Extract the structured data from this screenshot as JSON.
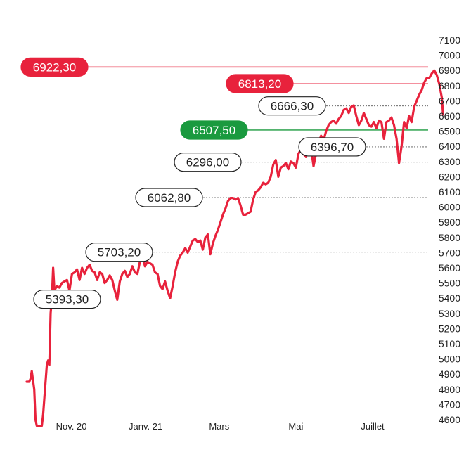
{
  "chart_data": {
    "type": "line",
    "ylim": [
      4550,
      7150
    ],
    "y_ticks": [
      "7100",
      "7000",
      "6900",
      "6800",
      "6700",
      "6600",
      "6500",
      "6400",
      "6300",
      "6200",
      "6100",
      "6000",
      "5900",
      "5800",
      "5700",
      "5600",
      "5500",
      "5400",
      "5300",
      "5200",
      "5100",
      "5000",
      "4900",
      "4800",
      "4700",
      "4600"
    ],
    "x_ticks": [
      {
        "label": "Nov. 20",
        "x": 7.5
      },
      {
        "label": "Janv. 21",
        "x": 66.5
      },
      {
        "label": "Mars",
        "x": 125
      },
      {
        "label": "Mai",
        "x": 186
      },
      {
        "label": "Juillet",
        "x": 247
      }
    ],
    "x_range": [
      -28,
      290
    ],
    "series": [
      {
        "color": "#e8223c",
        "points": [
          [
            -28,
            4850
          ],
          [
            -26,
            4850
          ],
          [
            -25,
            4870
          ],
          [
            -24,
            4920
          ],
          [
            -22,
            4800
          ],
          [
            -21,
            4600
          ],
          [
            -20,
            4560
          ],
          [
            -16,
            4560
          ],
          [
            -15,
            4630
          ],
          [
            -12,
            4960
          ],
          [
            -11,
            4990
          ],
          [
            -10,
            4960
          ],
          [
            -9,
            5300
          ],
          [
            -8,
            5400
          ],
          [
            -7,
            5600
          ],
          [
            -6,
            5450
          ],
          [
            -4,
            5480
          ],
          [
            -2,
            5470
          ],
          [
            0,
            5500
          ],
          [
            2,
            5510
          ],
          [
            4,
            5520
          ],
          [
            6,
            5450
          ],
          [
            8,
            5560
          ],
          [
            10,
            5570
          ],
          [
            12,
            5590
          ],
          [
            14,
            5520
          ],
          [
            16,
            5600
          ],
          [
            18,
            5560
          ],
          [
            20,
            5600
          ],
          [
            22,
            5620
          ],
          [
            24,
            5580
          ],
          [
            26,
            5570
          ],
          [
            28,
            5520
          ],
          [
            30,
            5570
          ],
          [
            32,
            5560
          ],
          [
            34,
            5500
          ],
          [
            36,
            5520
          ],
          [
            38,
            5550
          ],
          [
            40,
            5520
          ],
          [
            42,
            5450
          ],
          [
            44,
            5390
          ],
          [
            46,
            5510
          ],
          [
            48,
            5560
          ],
          [
            50,
            5580
          ],
          [
            52,
            5540
          ],
          [
            54,
            5560
          ],
          [
            56,
            5610
          ],
          [
            58,
            5570
          ],
          [
            60,
            5560
          ],
          [
            62,
            5640
          ],
          [
            64,
            5690
          ],
          [
            66,
            5610
          ],
          [
            68,
            5640
          ],
          [
            70,
            5630
          ],
          [
            72,
            5620
          ],
          [
            74,
            5570
          ],
          [
            76,
            5560
          ],
          [
            78,
            5480
          ],
          [
            80,
            5460
          ],
          [
            82,
            5510
          ],
          [
            84,
            5450
          ],
          [
            86,
            5400
          ],
          [
            88,
            5480
          ],
          [
            90,
            5570
          ],
          [
            92,
            5640
          ],
          [
            94,
            5680
          ],
          [
            96,
            5700
          ],
          [
            98,
            5730
          ],
          [
            100,
            5700
          ],
          [
            102,
            5740
          ],
          [
            104,
            5780
          ],
          [
            106,
            5790
          ],
          [
            108,
            5770
          ],
          [
            110,
            5780
          ],
          [
            112,
            5720
          ],
          [
            114,
            5800
          ],
          [
            116,
            5820
          ],
          [
            118,
            5690
          ],
          [
            120,
            5760
          ],
          [
            122,
            5810
          ],
          [
            124,
            5850
          ],
          [
            126,
            5900
          ],
          [
            128,
            5950
          ],
          [
            130,
            5990
          ],
          [
            132,
            6040
          ],
          [
            134,
            6060
          ],
          [
            136,
            6060
          ],
          [
            138,
            6050
          ],
          [
            140,
            6060
          ],
          [
            142,
            6010
          ],
          [
            144,
            5950
          ],
          [
            146,
            5950
          ],
          [
            148,
            5960
          ],
          [
            150,
            5970
          ],
          [
            152,
            6050
          ],
          [
            154,
            6100
          ],
          [
            156,
            6110
          ],
          [
            158,
            6130
          ],
          [
            160,
            6160
          ],
          [
            162,
            6150
          ],
          [
            164,
            6160
          ],
          [
            166,
            6200
          ],
          [
            168,
            6280
          ],
          [
            170,
            6310
          ],
          [
            172,
            6200
          ],
          [
            174,
            6260
          ],
          [
            176,
            6270
          ],
          [
            178,
            6290
          ],
          [
            180,
            6250
          ],
          [
            182,
            6300
          ],
          [
            184,
            6290
          ],
          [
            186,
            6260
          ],
          [
            188,
            6350
          ],
          [
            190,
            6380
          ],
          [
            192,
            6350
          ],
          [
            194,
            6330
          ],
          [
            196,
            6380
          ],
          [
            198,
            6390
          ],
          [
            200,
            6270
          ],
          [
            202,
            6350
          ],
          [
            204,
            6420
          ],
          [
            206,
            6470
          ],
          [
            208,
            6440
          ],
          [
            210,
            6500
          ],
          [
            212,
            6540
          ],
          [
            214,
            6560
          ],
          [
            216,
            6570
          ],
          [
            218,
            6550
          ],
          [
            220,
            6580
          ],
          [
            222,
            6600
          ],
          [
            224,
            6640
          ],
          [
            226,
            6650
          ],
          [
            228,
            6620
          ],
          [
            230,
            6660
          ],
          [
            232,
            6670
          ],
          [
            234,
            6600
          ],
          [
            236,
            6540
          ],
          [
            238,
            6570
          ],
          [
            240,
            6620
          ],
          [
            242,
            6580
          ],
          [
            244,
            6540
          ],
          [
            246,
            6530
          ],
          [
            248,
            6560
          ],
          [
            250,
            6520
          ],
          [
            252,
            6570
          ],
          [
            254,
            6560
          ],
          [
            256,
            6450
          ],
          [
            258,
            6560
          ],
          [
            260,
            6570
          ],
          [
            262,
            6590
          ],
          [
            264,
            6540
          ],
          [
            266,
            6450
          ],
          [
            268,
            6290
          ],
          [
            270,
            6400
          ],
          [
            272,
            6560
          ],
          [
            274,
            6520
          ],
          [
            276,
            6600
          ],
          [
            278,
            6560
          ],
          [
            280,
            6660
          ],
          [
            282,
            6700
          ],
          [
            284,
            6740
          ],
          [
            286,
            6770
          ],
          [
            288,
            6820
          ],
          [
            290,
            6850
          ],
          [
            292,
            6850
          ],
          [
            294,
            6880
          ],
          [
            296,
            6900
          ],
          [
            298,
            6870
          ],
          [
            300,
            6810
          ],
          [
            302,
            6720
          ],
          [
            303,
            6610
          ]
        ]
      }
    ],
    "annotations": [
      {
        "label": "6922,30",
        "value": 6922.3,
        "style": "red",
        "line": "solid"
      },
      {
        "label": "6813,20",
        "value": 6813.2,
        "style": "red",
        "line": "thin"
      },
      {
        "label": "6666,30",
        "value": 6666.3,
        "style": "outline",
        "line": "dashed"
      },
      {
        "label": "6507,50",
        "value": 6507.5,
        "style": "green",
        "line": "solid"
      },
      {
        "label": "6396,70",
        "value": 6396.7,
        "style": "outline",
        "line": "dashed"
      },
      {
        "label": "6296,00",
        "value": 6296.0,
        "style": "outline",
        "line": "dashed"
      },
      {
        "label": "6062,80",
        "value": 6062.8,
        "style": "outline",
        "line": "dashed"
      },
      {
        "label": "5703,20",
        "value": 5703.2,
        "style": "outline",
        "line": "dashed"
      },
      {
        "label": "5393,30",
        "value": 5393.3,
        "style": "outline",
        "line": "dashed"
      }
    ],
    "colors": {
      "line": "#e8223c",
      "red_badge": "#e8223c",
      "green_badge": "#1a9a3f",
      "outline": "#222222"
    }
  }
}
